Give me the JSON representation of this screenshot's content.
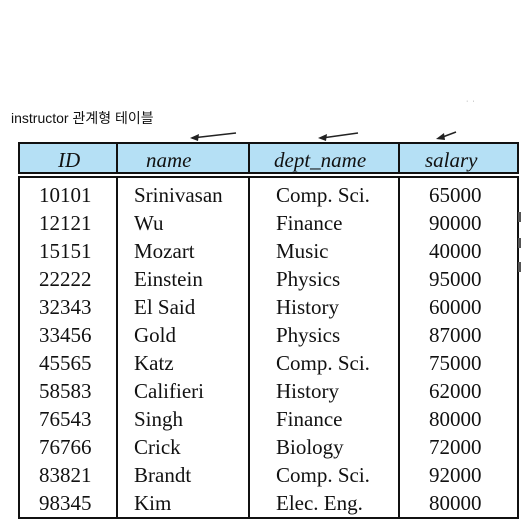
{
  "caption": "instructor 관계형 테이블",
  "table": {
    "headers": [
      "ID",
      "name",
      "dept_name",
      "salary"
    ],
    "rows": [
      [
        "10101",
        "Srinivasan",
        "Comp. Sci.",
        "65000"
      ],
      [
        "12121",
        "Wu",
        "Finance",
        "90000"
      ],
      [
        "15151",
        "Mozart",
        "Music",
        "40000"
      ],
      [
        "22222",
        "Einstein",
        "Physics",
        "95000"
      ],
      [
        "32343",
        "El Said",
        "History",
        "60000"
      ],
      [
        "33456",
        "Gold",
        "Physics",
        "87000"
      ],
      [
        "45565",
        "Katz",
        "Comp. Sci.",
        "75000"
      ],
      [
        "58583",
        "Califieri",
        "History",
        "62000"
      ],
      [
        "76543",
        "Singh",
        "Finance",
        "80000"
      ],
      [
        "76766",
        "Crick",
        "Biology",
        "72000"
      ],
      [
        "83821",
        "Brandt",
        "Comp. Sci.",
        "92000"
      ],
      [
        "98345",
        "Kim",
        "Elec. Eng.",
        "80000"
      ]
    ]
  },
  "colors": {
    "header_bg": "#b5e0f5",
    "border": "#111111"
  }
}
